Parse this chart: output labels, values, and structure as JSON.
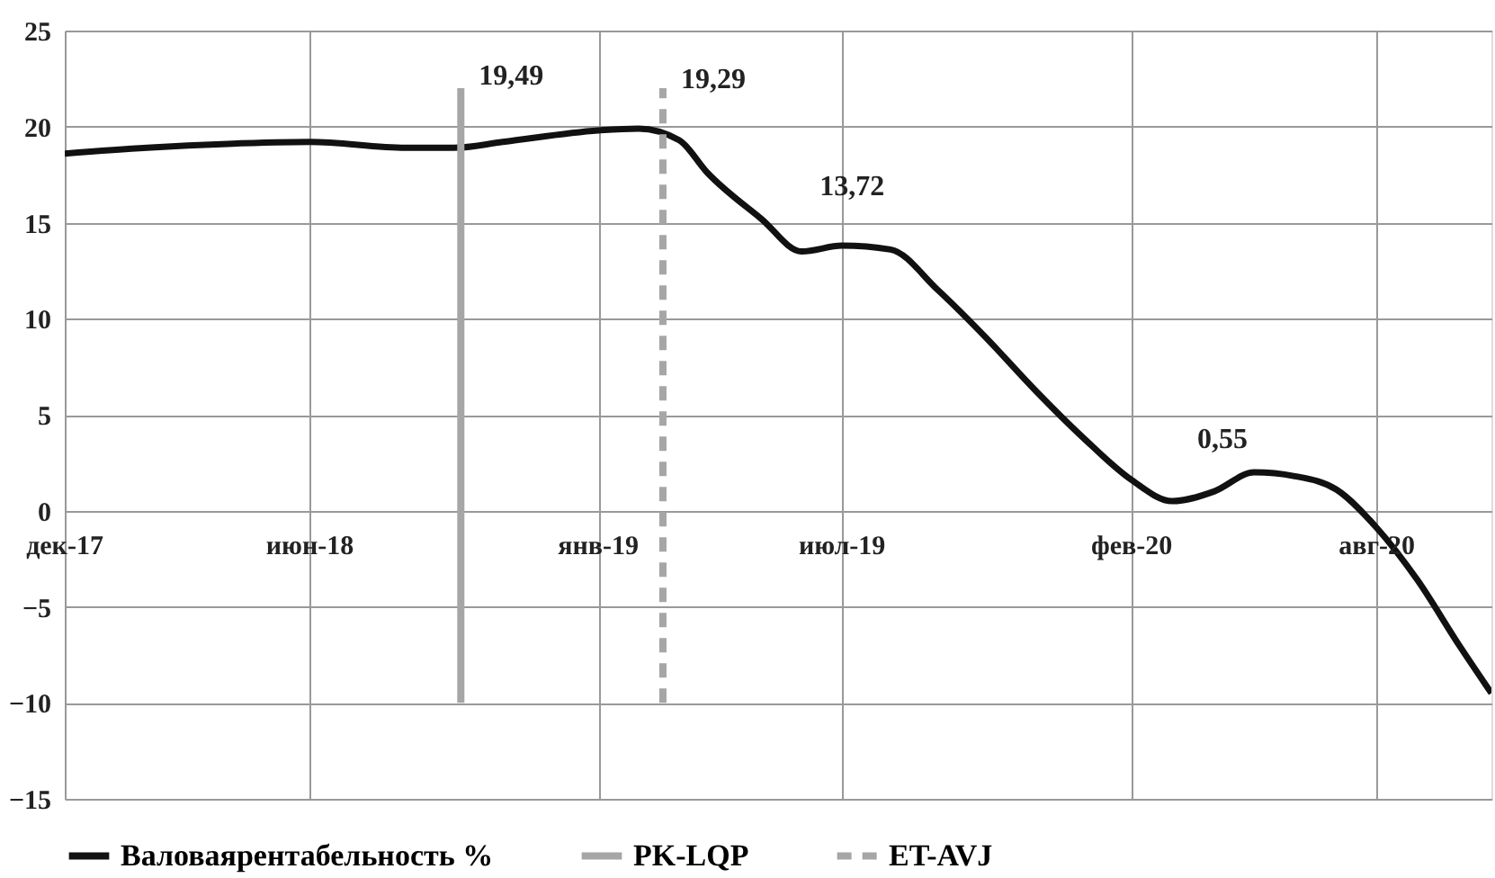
{
  "chart_data": {
    "type": "line",
    "series": [
      {
        "name": "Валоваярентабельность %",
        "color": "#111111",
        "line_style": "solid",
        "x": [
          "2017-12-15",
          "2018-02-14",
          "2018-04-15",
          "2018-06-15",
          "2018-08-25",
          "2018-09-30",
          "2018-11-05",
          "2019-01-15",
          "2019-02-14",
          "2019-03-16",
          "2019-04-06",
          "2019-05-16",
          "2019-06-15",
          "2019-07-15",
          "2019-08-20",
          "2019-09-24",
          "2019-10-30",
          "2019-12-05",
          "2020-01-10",
          "2020-02-15",
          "2020-03-16",
          "2020-04-16",
          "2020-05-16",
          "2020-06-15",
          "2020-07-16",
          "2020-08-15",
          "2020-09-14",
          "2020-10-15",
          "2020-11-08"
        ],
        "values": [
          18.6,
          18.9,
          19.1,
          19.2,
          18.9,
          18.9,
          19.2,
          19.8,
          19.9,
          19.3,
          17.6,
          15.2,
          13.5,
          13.8,
          13.6,
          11.5,
          9.0,
          6.3,
          3.8,
          1.6,
          0.5,
          1.0,
          2.0,
          1.8,
          1.1,
          -0.9,
          -3.6,
          -7.0,
          -9.5
        ]
      },
      {
        "name": "PK-LQP",
        "color": "#a6a6a6",
        "line_style": "solid",
        "x": [
          "2018-10-05",
          "2018-10-05"
        ],
        "values": [
          -10,
          22
        ]
      },
      {
        "name": "ET-AVJ",
        "color": "#a6a6a6",
        "line_style": "dashed",
        "x": [
          "2019-03-04",
          "2019-03-04"
        ],
        "values": [
          -10,
          22
        ]
      }
    ],
    "xlim": [
      "2017-12-15",
      "2020-11-08"
    ],
    "xticks": [
      {
        "value": "2017-12-15",
        "label": "дек-17"
      },
      {
        "value": "2018-06-15",
        "label": "июн-18"
      },
      {
        "value": "2019-01-15",
        "label": "янв-19"
      },
      {
        "value": "2019-07-15",
        "label": "июл-19"
      },
      {
        "value": "2020-02-15",
        "label": "фев-20"
      },
      {
        "value": "2020-08-15",
        "label": "авг-20"
      }
    ],
    "ylim": [
      -15,
      25
    ],
    "yticks": [
      -15,
      -10,
      -5,
      0,
      5,
      10,
      15,
      20,
      25
    ],
    "annotations": [
      {
        "text": "19,49",
        "x": "2018-10-05",
        "y": 19.49
      },
      {
        "text": "19,29",
        "x": "2019-03-04",
        "y": 19.29
      },
      {
        "text": "13,72",
        "x": "2019-06-15",
        "y": 13.72
      },
      {
        "text": "0,55",
        "x": "2020-03-16",
        "y": 0.55
      }
    ],
    "grid": true,
    "legend": "bottom"
  }
}
